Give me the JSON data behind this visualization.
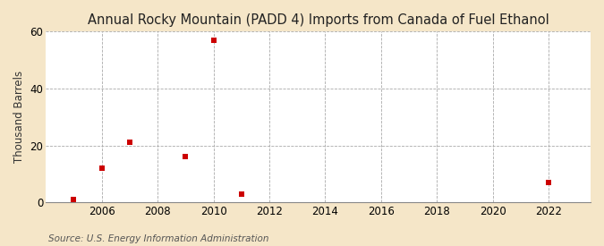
{
  "title": "Annual Rocky Mountain (PADD 4) Imports from Canada of Fuel Ethanol",
  "ylabel": "Thousand Barrels",
  "source": "Source: U.S. Energy Information Administration",
  "x_data": [
    2005,
    2006,
    2007,
    2009,
    2010,
    2011,
    2022
  ],
  "y_data": [
    1,
    12,
    21,
    16,
    57,
    3,
    7
  ],
  "marker_color": "#cc0000",
  "marker": "s",
  "marker_size": 4,
  "figure_bg_color": "#f5e6c8",
  "plot_bg_color": "#ffffff",
  "grid_color": "#aaaaaa",
  "xlim": [
    2004.0,
    2023.5
  ],
  "ylim": [
    0,
    60
  ],
  "yticks": [
    0,
    20,
    40,
    60
  ],
  "xticks": [
    2006,
    2008,
    2010,
    2012,
    2014,
    2016,
    2018,
    2020,
    2022
  ],
  "title_fontsize": 10.5,
  "label_fontsize": 8.5,
  "tick_fontsize": 8.5,
  "source_fontsize": 7.5
}
